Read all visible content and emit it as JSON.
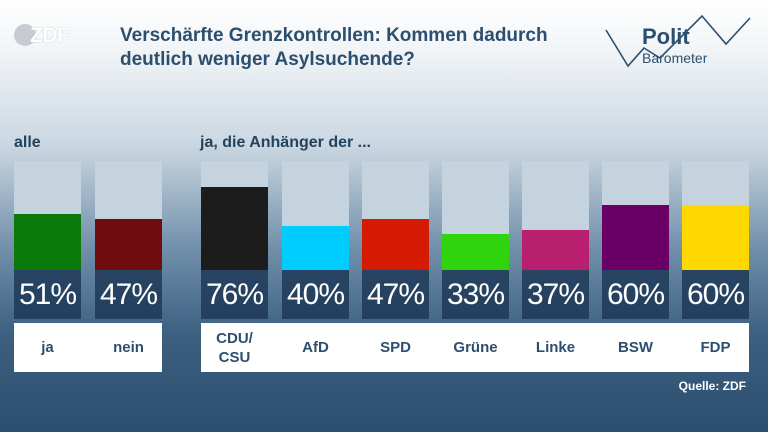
{
  "header": {
    "logo_text": "ZDF",
    "title": "Verschärfte Grenzkontrollen: Kommen dadurch deutlich weniger Asylsuchende?",
    "brand_line1": "Polit",
    "brand_line2": "Barometer"
  },
  "labels": {
    "group_all": "alle",
    "group_parties": "ja, die Anhänger der ..."
  },
  "chart_data": {
    "type": "bar",
    "title": "Verschärfte Grenzkontrollen: Kommen dadurch deutlich weniger Asylsuchende?",
    "xlabel": "",
    "ylabel": "",
    "ylim": [
      0,
      100
    ],
    "unit": "%",
    "grid": false,
    "bars": [
      {
        "category": "ja",
        "value": 51,
        "value_label": "51%",
        "color": "#0b7a0b",
        "group": "alle"
      },
      {
        "category": "nein",
        "value": 47,
        "value_label": "47%",
        "color": "#6e0c10",
        "group": "alle"
      },
      {
        "category": "CDU/ CSU",
        "value": 76,
        "value_label": "76%",
        "color": "#1c1c1c",
        "group": "ja, die Anhänger der ..."
      },
      {
        "category": "AfD",
        "value": 40,
        "value_label": "40%",
        "color": "#00ccff",
        "group": "ja, die Anhänger der ..."
      },
      {
        "category": "SPD",
        "value": 47,
        "value_label": "47%",
        "color": "#d41a00",
        "group": "ja, die Anhänger der ..."
      },
      {
        "category": "Grüne",
        "value": 33,
        "value_label": "33%",
        "color": "#2fd40e",
        "group": "ja, die Anhänger der ..."
      },
      {
        "category": "Linke",
        "value": 37,
        "value_label": "37%",
        "color": "#b81f6e",
        "group": "ja, die Anhänger der ..."
      },
      {
        "category": "BSW",
        "value": 60,
        "value_label": "60%",
        "color": "#6a0066",
        "group": "ja, die Anhänger der ..."
      },
      {
        "category": "FDP",
        "value": 60,
        "value_label": "60%",
        "color": "#ffd800",
        "group": "ja, die Anhänger der ..."
      }
    ]
  },
  "footer": {
    "source": "Quelle: ZDF"
  }
}
